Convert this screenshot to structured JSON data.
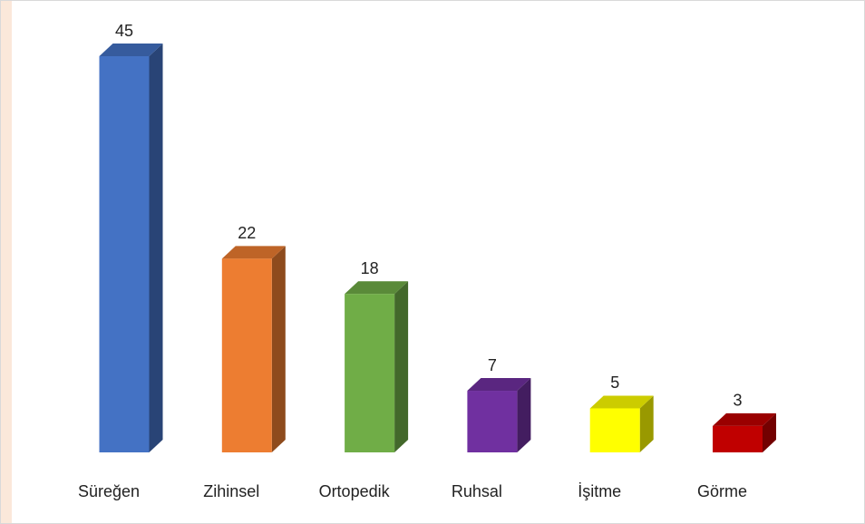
{
  "chart_data": {
    "type": "bar3d",
    "categories": [
      "Süreğen",
      "Zihinsel",
      "Ortopedik",
      "Ruhsal",
      "İşitme",
      "Görme"
    ],
    "values": [
      45,
      22,
      18,
      7,
      5,
      3
    ],
    "colors": [
      "#4472c4",
      "#ed7d31",
      "#70ad47",
      "#7030a0",
      "#ffff00",
      "#c00000"
    ]
  }
}
